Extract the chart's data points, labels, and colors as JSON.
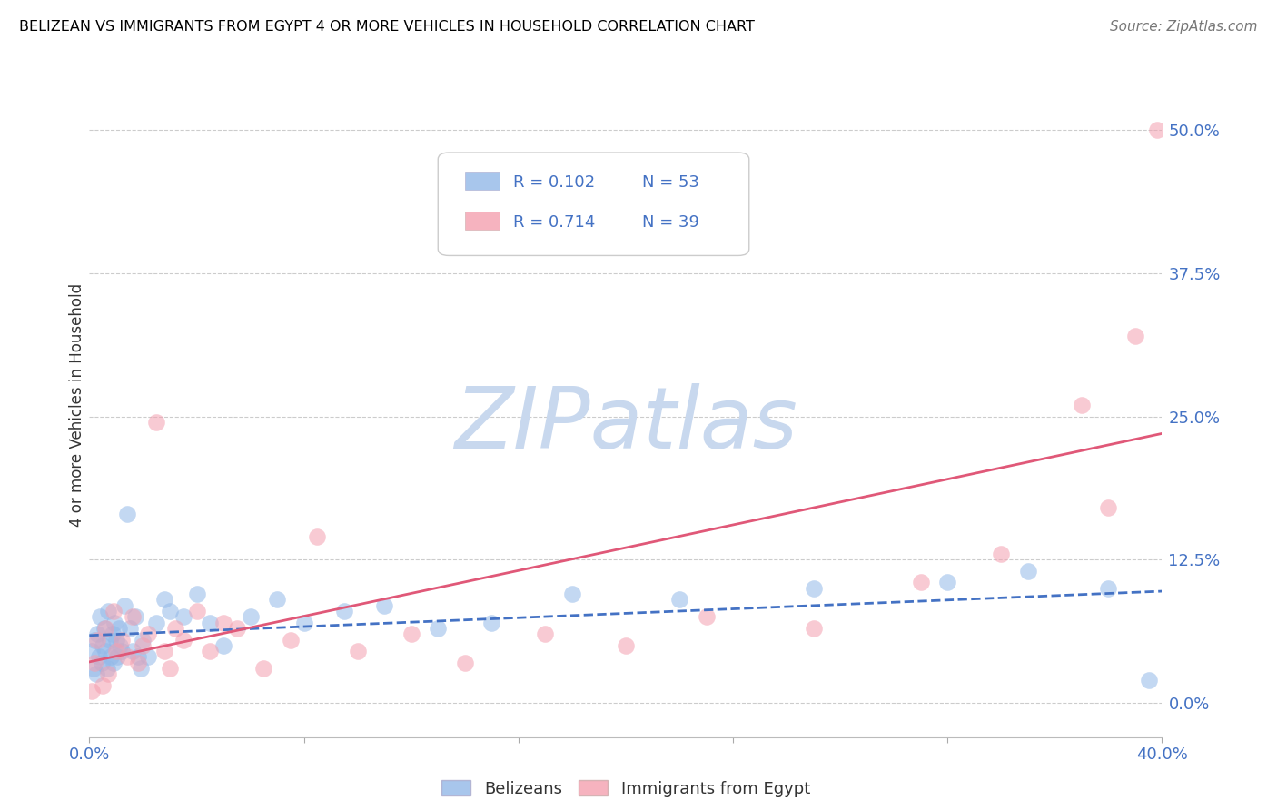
{
  "title": "BELIZEAN VS IMMIGRANTS FROM EGYPT 4 OR MORE VEHICLES IN HOUSEHOLD CORRELATION CHART",
  "source": "Source: ZipAtlas.com",
  "ylabel": "4 or more Vehicles in Household",
  "xlim": [
    0.0,
    40.0
  ],
  "ylim": [
    -3.0,
    55.0
  ],
  "yticks": [
    0.0,
    12.5,
    25.0,
    37.5,
    50.0
  ],
  "xticks": [
    0.0,
    8.0,
    16.0,
    24.0,
    32.0,
    40.0
  ],
  "belizean_color": "#92b8e8",
  "egypt_color": "#f4a0b0",
  "belizean_line_color": "#4472c4",
  "egypt_line_color": "#e05878",
  "belizean_R": "0.102",
  "belizean_N": "53",
  "egypt_R": "0.714",
  "egypt_N": "39",
  "legend_text_color": "#4472c4",
  "watermark": "ZIPatlas",
  "watermark_color": "#c8d8ee",
  "belizean_x": [
    0.1,
    0.15,
    0.2,
    0.25,
    0.3,
    0.35,
    0.4,
    0.45,
    0.5,
    0.55,
    0.6,
    0.65,
    0.7,
    0.75,
    0.8,
    0.85,
    0.9,
    0.95,
    1.0,
    1.05,
    1.1,
    1.15,
    1.2,
    1.3,
    1.4,
    1.5,
    1.6,
    1.7,
    1.8,
    1.9,
    2.0,
    2.2,
    2.5,
    2.8,
    3.0,
    3.5,
    4.0,
    4.5,
    5.0,
    6.0,
    7.0,
    8.0,
    9.5,
    11.0,
    13.0,
    15.0,
    18.0,
    22.0,
    27.0,
    32.0,
    35.0,
    38.0,
    39.5
  ],
  "belizean_y": [
    4.5,
    3.0,
    5.5,
    2.5,
    6.0,
    4.0,
    7.5,
    3.5,
    5.0,
    6.5,
    4.5,
    3.0,
    8.0,
    5.5,
    4.0,
    6.0,
    3.5,
    7.0,
    5.5,
    4.0,
    6.5,
    5.0,
    4.5,
    8.5,
    16.5,
    6.5,
    4.5,
    7.5,
    4.0,
    3.0,
    5.5,
    4.0,
    7.0,
    9.0,
    8.0,
    7.5,
    9.5,
    7.0,
    5.0,
    7.5,
    9.0,
    7.0,
    8.0,
    8.5,
    6.5,
    7.0,
    9.5,
    9.0,
    10.0,
    10.5,
    11.5,
    10.0,
    2.0
  ],
  "egypt_x": [
    0.1,
    0.2,
    0.3,
    0.5,
    0.6,
    0.7,
    0.9,
    1.0,
    1.2,
    1.4,
    1.6,
    1.8,
    2.0,
    2.2,
    2.5,
    2.8,
    3.0,
    3.2,
    3.5,
    4.0,
    4.5,
    5.0,
    5.5,
    6.5,
    7.5,
    8.5,
    10.0,
    12.0,
    14.0,
    17.0,
    20.0,
    23.0,
    27.0,
    31.0,
    34.0,
    37.0,
    38.0,
    39.0,
    39.8
  ],
  "egypt_y": [
    1.0,
    3.5,
    5.5,
    1.5,
    6.5,
    2.5,
    8.0,
    4.5,
    5.5,
    4.0,
    7.5,
    3.5,
    5.0,
    6.0,
    24.5,
    4.5,
    3.0,
    6.5,
    5.5,
    8.0,
    4.5,
    7.0,
    6.5,
    3.0,
    5.5,
    14.5,
    4.5,
    6.0,
    3.5,
    6.0,
    5.0,
    7.5,
    6.5,
    10.5,
    13.0,
    26.0,
    17.0,
    32.0,
    50.0
  ]
}
